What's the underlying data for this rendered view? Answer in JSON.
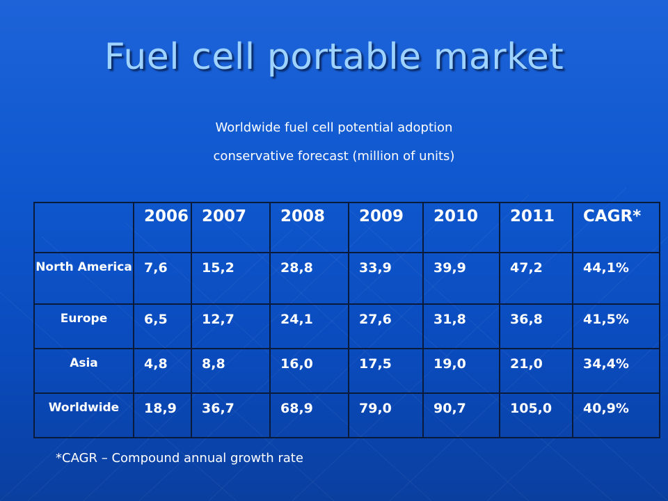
{
  "title": "Fuel cell portable market",
  "subtitle": {
    "line1": "Worldwide fuel cell potential adoption",
    "line2": "conservative forecast (million of units)"
  },
  "table": {
    "header": [
      "",
      "2006",
      "2007",
      "2008",
      "2009",
      "2010",
      "2011",
      "CAGR*"
    ],
    "rows": [
      {
        "region": "North America",
        "values": [
          "7,6",
          "15,2",
          "28,8",
          "33,9",
          "39,9",
          "47,2",
          "44,1%"
        ]
      },
      {
        "region": "Europe",
        "values": [
          "6,5",
          "12,7",
          "24,1",
          "27,6",
          "31,8",
          "36,8",
          "41,5%"
        ]
      },
      {
        "region": "Asia",
        "values": [
          "4,8",
          "8,8",
          "16,0",
          "17,5",
          "19,0",
          "21,0",
          "34,4%"
        ]
      },
      {
        "region": "Worldwide",
        "values": [
          "18,9",
          "36,7",
          "68,9",
          "79,0",
          "90,7",
          "105,0",
          "40,9%"
        ]
      }
    ]
  },
  "footnote": "*CAGR – Compound annual growth rate",
  "colors": {
    "background": "#0b4fc4",
    "title": "#9fd3ff",
    "text": "#ffffff",
    "grid": "#0a1a3a"
  }
}
